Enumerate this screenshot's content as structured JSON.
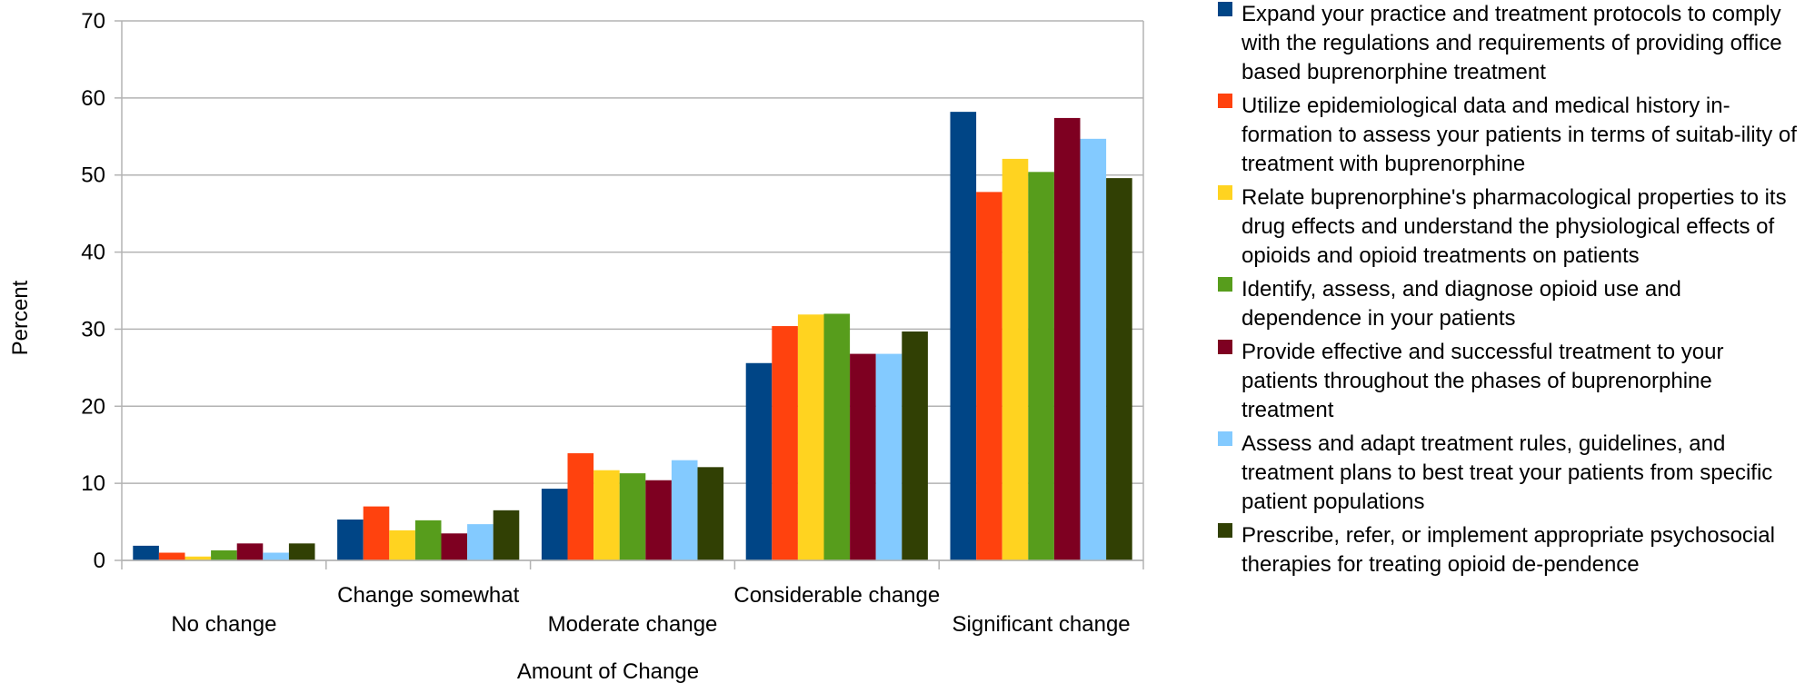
{
  "chart_data": {
    "type": "bar",
    "title": "",
    "xlabel": "Amount of Change",
    "ylabel": "Percent",
    "ylim": [
      0,
      70
    ],
    "yticks": [
      0,
      10,
      20,
      30,
      40,
      50,
      60,
      70
    ],
    "grid": true,
    "legend_position": "right",
    "categories": [
      "No change",
      "Change somewhat",
      "Moderate change",
      "Considerable change",
      "Significant change"
    ],
    "series": [
      {
        "name": "Expand your practice and treatment protocols to comply with the regulations and requirements of providing office based buprenorphine treatment",
        "color": "#004586",
        "values": [
          1.9,
          5.3,
          9.3,
          25.6,
          58.2
        ]
      },
      {
        "name": "Utilize epidemiological data and medical history in-formation to assess your patients in terms of suitab-ility of treatment with buprenorphine",
        "color": "#ff420e",
        "values": [
          1.0,
          7.0,
          13.9,
          30.4,
          47.8
        ]
      },
      {
        "name": "Relate buprenorphine's pharmacological properties to its drug effects and understand the physiological effects of opioids and opioid treatments on patients",
        "color": "#ffd320",
        "values": [
          0.5,
          3.9,
          11.7,
          31.9,
          52.1
        ]
      },
      {
        "name": "Identify, assess, and diagnose opioid use and dependence in your patients",
        "color": "#579d1c",
        "values": [
          1.3,
          5.2,
          11.3,
          32.0,
          50.4
        ]
      },
      {
        "name": "Provide effective and successful treatment to your patients throughout the phases of buprenorphine treatment",
        "color": "#7e0021",
        "values": [
          2.2,
          3.5,
          10.4,
          26.8,
          57.4
        ]
      },
      {
        "name": "Assess and adapt treatment rules, guidelines, and treatment plans to best treat your patients from specific patient populations",
        "color": "#83caff",
        "values": [
          1.0,
          4.7,
          13.0,
          26.8,
          54.7
        ]
      },
      {
        "name": "Prescribe, refer, or implement appropriate psychosocial therapies for treating opioid de-pendence",
        "color": "#314004",
        "values": [
          2.2,
          6.5,
          12.1,
          29.7,
          49.6
        ]
      }
    ]
  }
}
